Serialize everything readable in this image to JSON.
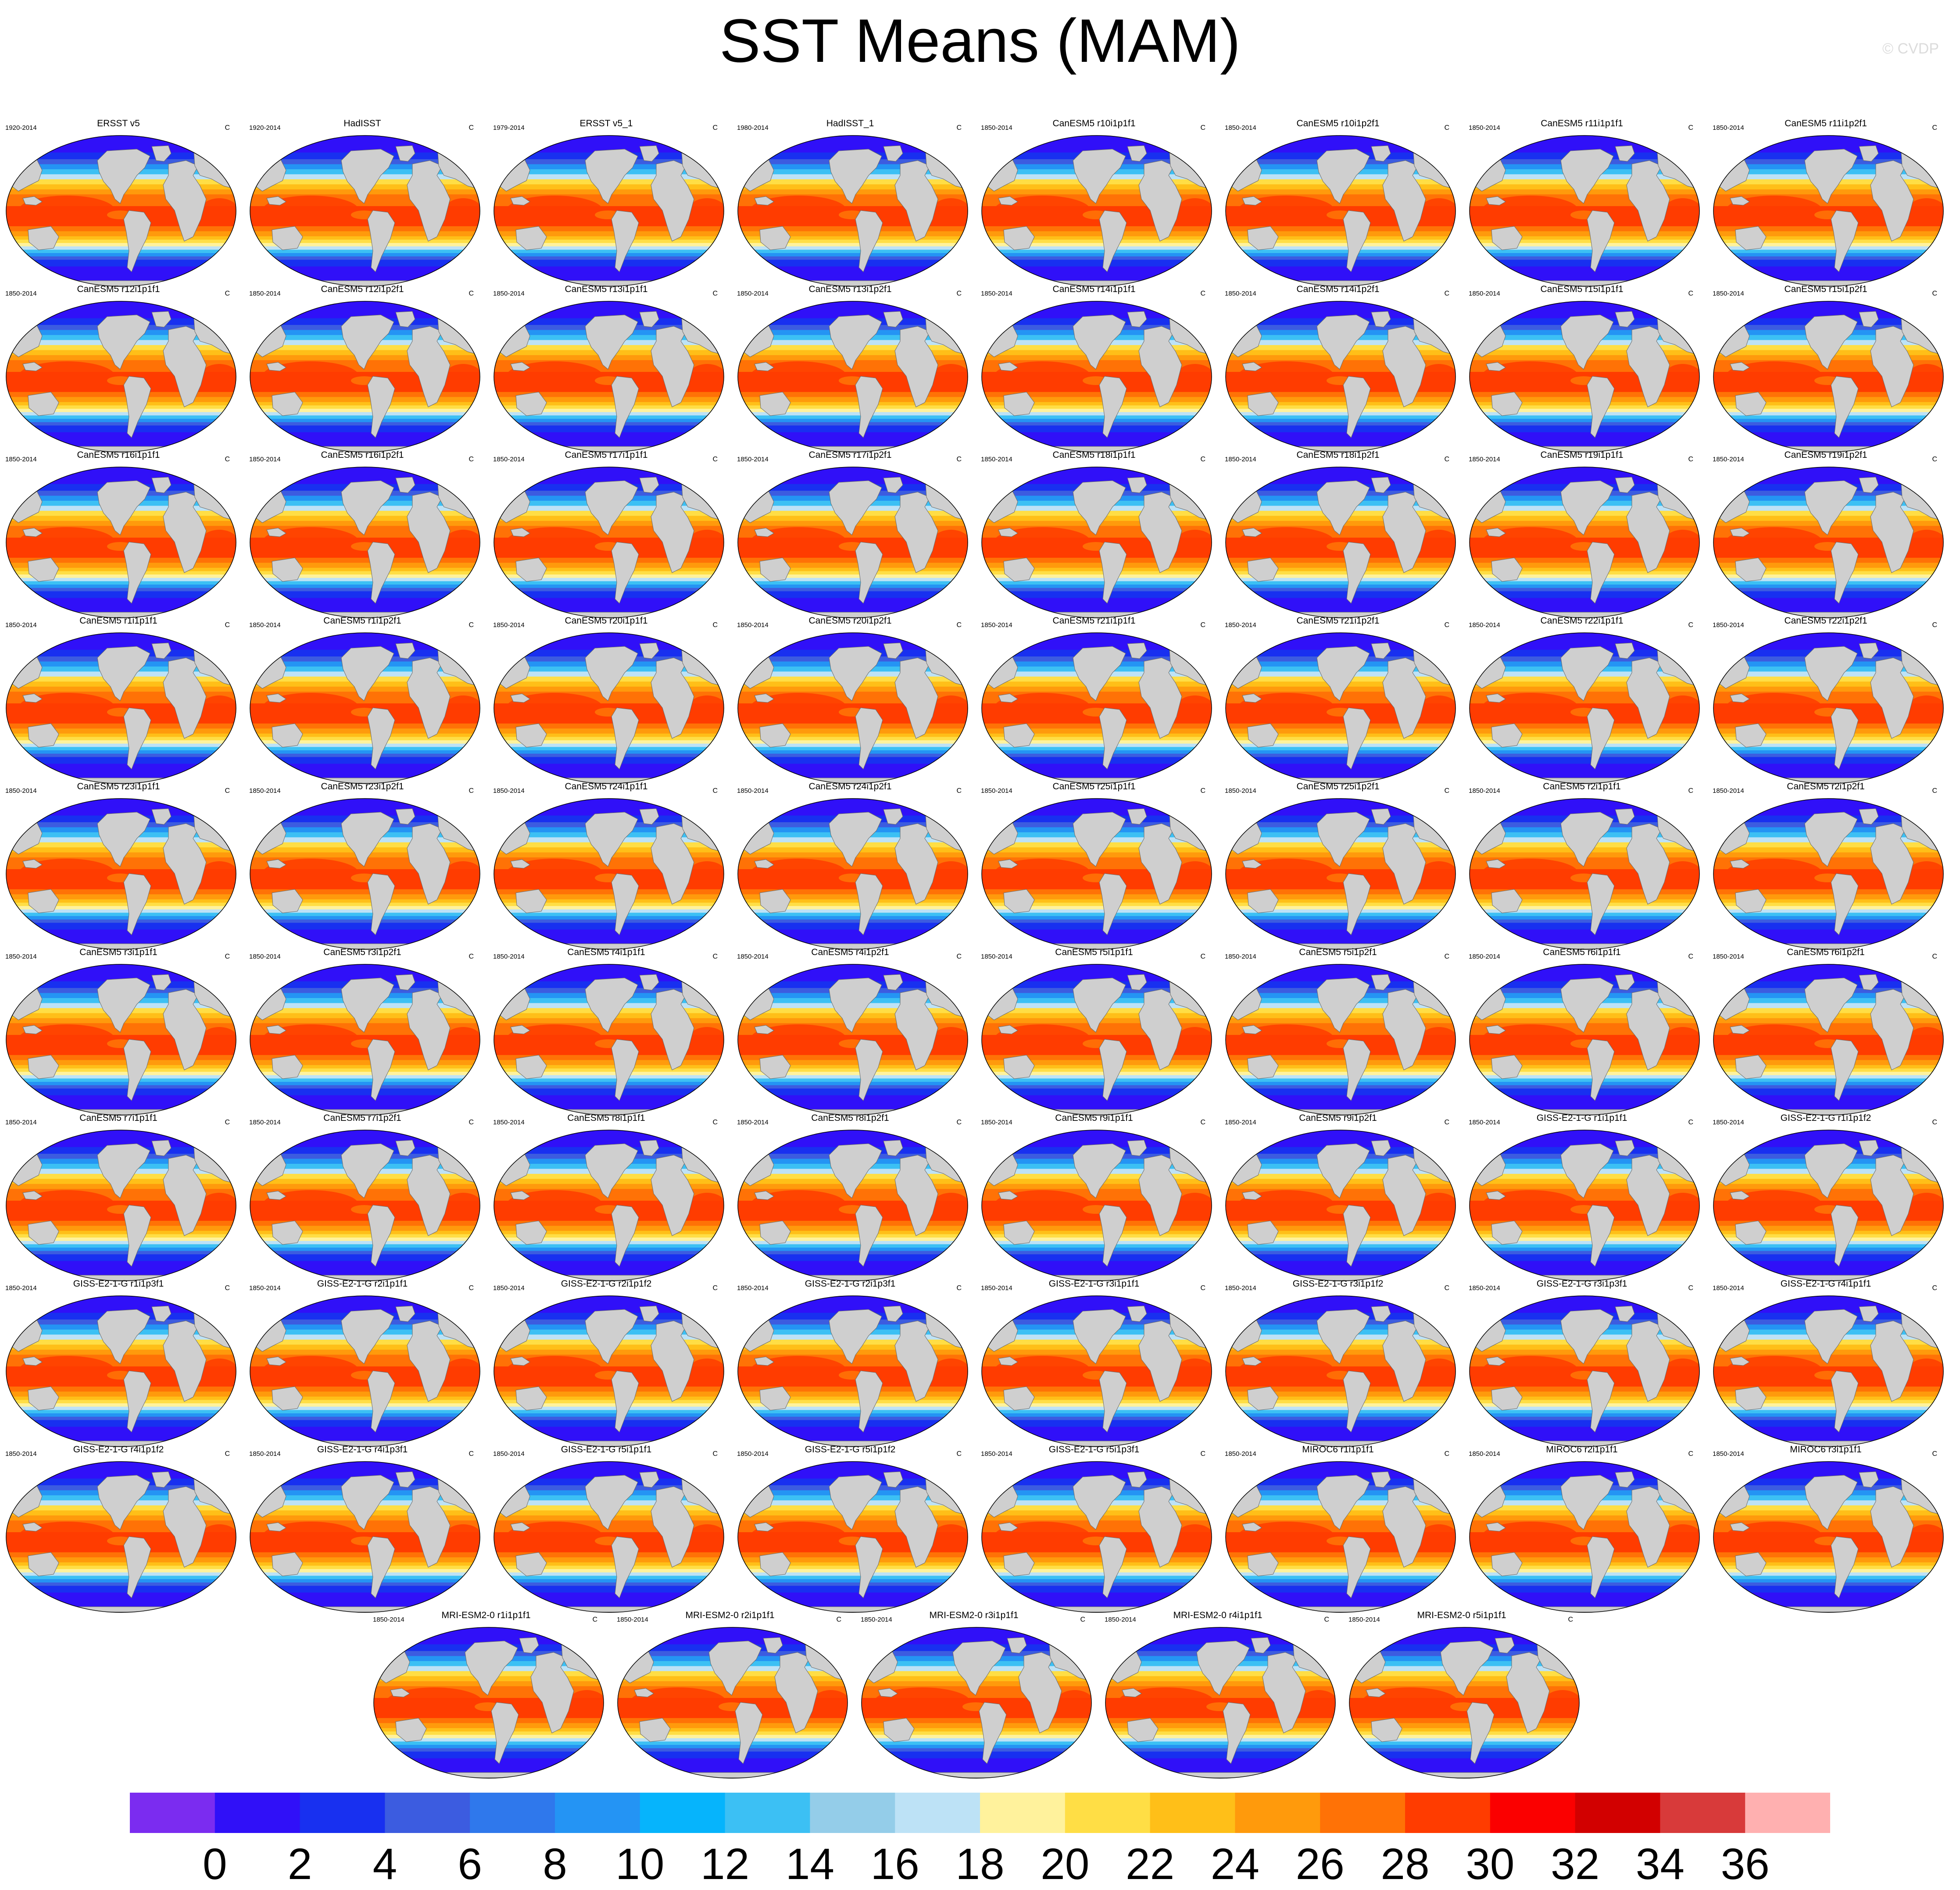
{
  "title": "SST Means (MAM)",
  "credit": "© CVDP",
  "chart_data": {
    "type": "heatmap",
    "title": "SST Means (MAM)",
    "variable": "SST",
    "season": "MAM",
    "units": "C",
    "projection": "Robinson",
    "grid": false,
    "legend_position": "bottom",
    "colorbar": {
      "levels": [
        0,
        2,
        4,
        6,
        8,
        10,
        12,
        14,
        16,
        18,
        20,
        22,
        24,
        26,
        28,
        30,
        32,
        34,
        36
      ],
      "labels": [
        "0",
        "2",
        "4",
        "6",
        "8",
        "10",
        "12",
        "14",
        "16",
        "18",
        "20",
        "22",
        "24",
        "26",
        "28",
        "30",
        "32",
        "34",
        "36"
      ],
      "colors": [
        "#7b2cf0",
        "#3010f8",
        "#1830f0",
        "#3c5ce0",
        "#2f78ec",
        "#2494f4",
        "#06b4fc",
        "#3cc0f4",
        "#94cde9",
        "#bde2f6",
        "#fff29c",
        "#ffde45",
        "#ffbf18",
        "#ff9a0c",
        "#ff7206",
        "#ff3c00",
        "#fb0000",
        "#d20000",
        "#d83a3a",
        "#ffb0b0"
      ]
    },
    "panels": [
      {
        "title": "ERSST v5",
        "period": "1920-2014",
        "units": "C"
      },
      {
        "title": "HadISST",
        "period": "1920-2014",
        "units": "C"
      },
      {
        "title": "ERSST v5_1",
        "period": "1979-2014",
        "units": "C"
      },
      {
        "title": "HadISST_1",
        "period": "1980-2014",
        "units": "C"
      },
      {
        "title": "CanESM5 r10i1p1f1",
        "period": "1850-2014",
        "units": "C"
      },
      {
        "title": "CanESM5 r10i1p2f1",
        "period": "1850-2014",
        "units": "C"
      },
      {
        "title": "CanESM5 r11i1p1f1",
        "period": "1850-2014",
        "units": "C"
      },
      {
        "title": "CanESM5 r11i1p2f1",
        "period": "1850-2014",
        "units": "C"
      },
      {
        "title": "CanESM5 r12i1p1f1",
        "period": "1850-2014",
        "units": "C"
      },
      {
        "title": "CanESM5 r12i1p2f1",
        "period": "1850-2014",
        "units": "C"
      },
      {
        "title": "CanESM5 r13i1p1f1",
        "period": "1850-2014",
        "units": "C"
      },
      {
        "title": "CanESM5 r13i1p2f1",
        "period": "1850-2014",
        "units": "C"
      },
      {
        "title": "CanESM5 r14i1p1f1",
        "period": "1850-2014",
        "units": "C"
      },
      {
        "title": "CanESM5 r14i1p2f1",
        "period": "1850-2014",
        "units": "C"
      },
      {
        "title": "CanESM5 r15i1p1f1",
        "period": "1850-2014",
        "units": "C"
      },
      {
        "title": "CanESM5 r15i1p2f1",
        "period": "1850-2014",
        "units": "C"
      },
      {
        "title": "CanESM5 r16i1p1f1",
        "period": "1850-2014",
        "units": "C"
      },
      {
        "title": "CanESM5 r16i1p2f1",
        "period": "1850-2014",
        "units": "C"
      },
      {
        "title": "CanESM5 r17i1p1f1",
        "period": "1850-2014",
        "units": "C"
      },
      {
        "title": "CanESM5 r17i1p2f1",
        "period": "1850-2014",
        "units": "C"
      },
      {
        "title": "CanESM5 r18i1p1f1",
        "period": "1850-2014",
        "units": "C"
      },
      {
        "title": "CanESM5 r18i1p2f1",
        "period": "1850-2014",
        "units": "C"
      },
      {
        "title": "CanESM5 r19i1p1f1",
        "period": "1850-2014",
        "units": "C"
      },
      {
        "title": "CanESM5 r19i1p2f1",
        "period": "1850-2014",
        "units": "C"
      },
      {
        "title": "CanESM5 r1i1p1f1",
        "period": "1850-2014",
        "units": "C"
      },
      {
        "title": "CanESM5 r1i1p2f1",
        "period": "1850-2014",
        "units": "C"
      },
      {
        "title": "CanESM5 r20i1p1f1",
        "period": "1850-2014",
        "units": "C"
      },
      {
        "title": "CanESM5 r20i1p2f1",
        "period": "1850-2014",
        "units": "C"
      },
      {
        "title": "CanESM5 r21i1p1f1",
        "period": "1850-2014",
        "units": "C"
      },
      {
        "title": "CanESM5 r21i1p2f1",
        "period": "1850-2014",
        "units": "C"
      },
      {
        "title": "CanESM5 r22i1p1f1",
        "period": "1850-2014",
        "units": "C"
      },
      {
        "title": "CanESM5 r22i1p2f1",
        "period": "1850-2014",
        "units": "C"
      },
      {
        "title": "CanESM5 r23i1p1f1",
        "period": "1850-2014",
        "units": "C"
      },
      {
        "title": "CanESM5 r23i1p2f1",
        "period": "1850-2014",
        "units": "C"
      },
      {
        "title": "CanESM5 r24i1p1f1",
        "period": "1850-2014",
        "units": "C"
      },
      {
        "title": "CanESM5 r24i1p2f1",
        "period": "1850-2014",
        "units": "C"
      },
      {
        "title": "CanESM5 r25i1p1f1",
        "period": "1850-2014",
        "units": "C"
      },
      {
        "title": "CanESM5 r25i1p2f1",
        "period": "1850-2014",
        "units": "C"
      },
      {
        "title": "CanESM5 r2i1p1f1",
        "period": "1850-2014",
        "units": "C"
      },
      {
        "title": "CanESM5 r2i1p2f1",
        "period": "1850-2014",
        "units": "C"
      },
      {
        "title": "CanESM5 r3i1p1f1",
        "period": "1850-2014",
        "units": "C"
      },
      {
        "title": "CanESM5 r3i1p2f1",
        "period": "1850-2014",
        "units": "C"
      },
      {
        "title": "CanESM5 r4i1p1f1",
        "period": "1850-2014",
        "units": "C"
      },
      {
        "title": "CanESM5 r4i1p2f1",
        "period": "1850-2014",
        "units": "C"
      },
      {
        "title": "CanESM5 r5i1p1f1",
        "period": "1850-2014",
        "units": "C"
      },
      {
        "title": "CanESM5 r5i1p2f1",
        "period": "1850-2014",
        "units": "C"
      },
      {
        "title": "CanESM5 r6i1p1f1",
        "period": "1850-2014",
        "units": "C"
      },
      {
        "title": "CanESM5 r6i1p2f1",
        "period": "1850-2014",
        "units": "C"
      },
      {
        "title": "CanESM5 r7i1p1f1",
        "period": "1850-2014",
        "units": "C"
      },
      {
        "title": "CanESM5 r7i1p2f1",
        "period": "1850-2014",
        "units": "C"
      },
      {
        "title": "CanESM5 r8i1p1f1",
        "period": "1850-2014",
        "units": "C"
      },
      {
        "title": "CanESM5 r8i1p2f1",
        "period": "1850-2014",
        "units": "C"
      },
      {
        "title": "CanESM5 r9i1p1f1",
        "period": "1850-2014",
        "units": "C"
      },
      {
        "title": "CanESM5 r9i1p2f1",
        "period": "1850-2014",
        "units": "C"
      },
      {
        "title": "GISS-E2-1-G r1i1p1f1",
        "period": "1850-2014",
        "units": "C"
      },
      {
        "title": "GISS-E2-1-G r1i1p1f2",
        "period": "1850-2014",
        "units": "C"
      },
      {
        "title": "GISS-E2-1-G r1i1p3f1",
        "period": "1850-2014",
        "units": "C"
      },
      {
        "title": "GISS-E2-1-G r2i1p1f1",
        "period": "1850-2014",
        "units": "C"
      },
      {
        "title": "GISS-E2-1-G r2i1p1f2",
        "period": "1850-2014",
        "units": "C"
      },
      {
        "title": "GISS-E2-1-G r2i1p3f1",
        "period": "1850-2014",
        "units": "C"
      },
      {
        "title": "GISS-E2-1-G r3i1p1f1",
        "period": "1850-2014",
        "units": "C"
      },
      {
        "title": "GISS-E2-1-G r3i1p1f2",
        "period": "1850-2014",
        "units": "C"
      },
      {
        "title": "GISS-E2-1-G r3i1p3f1",
        "period": "1850-2014",
        "units": "C"
      },
      {
        "title": "GISS-E2-1-G r4i1p1f1",
        "period": "1850-2014",
        "units": "C"
      },
      {
        "title": "GISS-E2-1-G r4i1p1f2",
        "period": "1850-2014",
        "units": "C"
      },
      {
        "title": "GISS-E2-1-G r4i1p3f1",
        "period": "1850-2014",
        "units": "C"
      },
      {
        "title": "GISS-E2-1-G r5i1p1f1",
        "period": "1850-2014",
        "units": "C"
      },
      {
        "title": "GISS-E2-1-G r5i1p1f2",
        "period": "1850-2014",
        "units": "C"
      },
      {
        "title": "GISS-E2-1-G r5i1p3f1",
        "period": "1850-2014",
        "units": "C"
      },
      {
        "title": "MIROC6 r1i1p1f1",
        "period": "1850-2014",
        "units": "C"
      },
      {
        "title": "MIROC6 r2i1p1f1",
        "period": "1850-2014",
        "units": "C"
      },
      {
        "title": "MIROC6 r3i1p1f1",
        "period": "1850-2014",
        "units": "C"
      },
      {
        "title": "MRI-ESM2-0 r1i1p1f1",
        "period": "1850-2014",
        "units": "C"
      },
      {
        "title": "MRI-ESM2-0 r2i1p1f1",
        "period": "1850-2014",
        "units": "C"
      },
      {
        "title": "MRI-ESM2-0 r3i1p1f1",
        "period": "1850-2014",
        "units": "C"
      },
      {
        "title": "MRI-ESM2-0 r4i1p1f1",
        "period": "1850-2014",
        "units": "C"
      },
      {
        "title": "MRI-ESM2-0 r5i1p1f1",
        "period": "1850-2014",
        "units": "C"
      }
    ]
  }
}
